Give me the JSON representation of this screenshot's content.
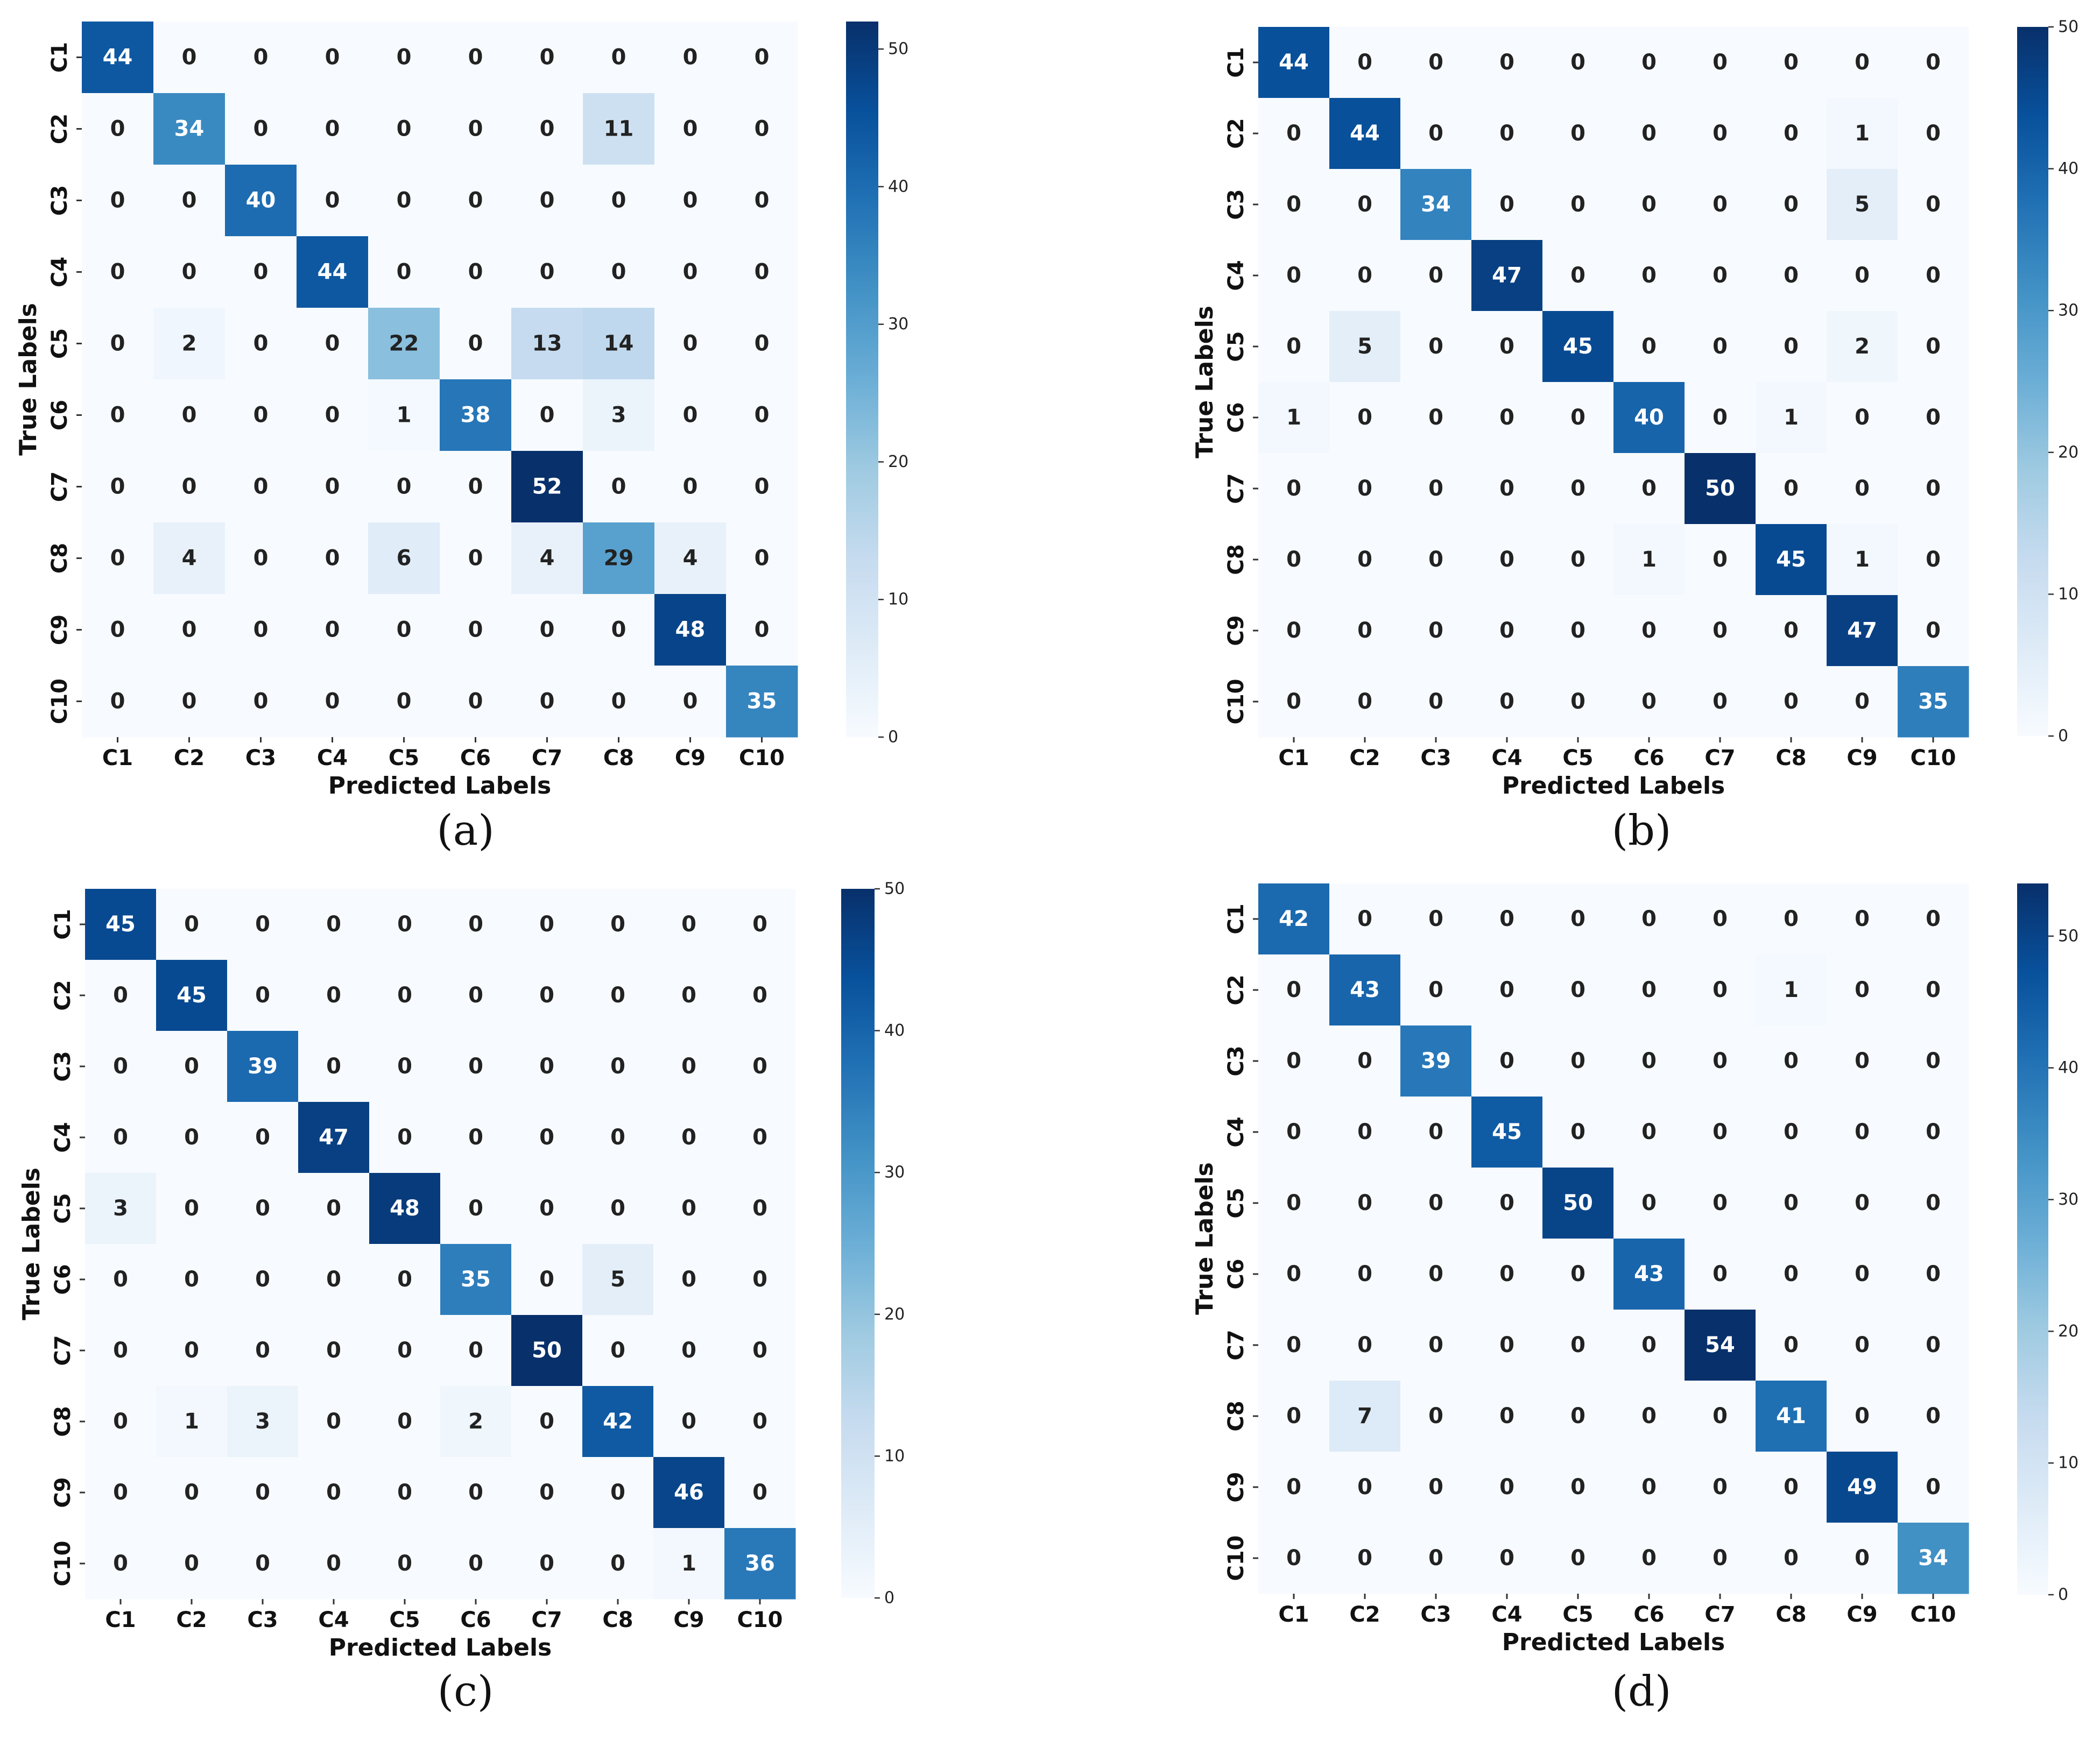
{
  "colorscale": [
    "#f7fbff",
    "#deebf7",
    "#c6dbef",
    "#9ecae1",
    "#6baed6",
    "#4292c6",
    "#2171b5",
    "#08519c",
    "#08306b"
  ],
  "chart_data": [
    {
      "type": "heatmap",
      "panel_label": "(a)",
      "xlabel": "Predicted Labels",
      "ylabel": "True Labels",
      "x_categories": [
        "C1",
        "C2",
        "C3",
        "C4",
        "C5",
        "C6",
        "C7",
        "C8",
        "C9",
        "C10"
      ],
      "y_categories": [
        "C1",
        "C2",
        "C3",
        "C4",
        "C5",
        "C6",
        "C7",
        "C8",
        "C9",
        "C10"
      ],
      "matrix": [
        [
          44,
          0,
          0,
          0,
          0,
          0,
          0,
          0,
          0,
          0
        ],
        [
          0,
          34,
          0,
          0,
          0,
          0,
          0,
          11,
          0,
          0
        ],
        [
          0,
          0,
          40,
          0,
          0,
          0,
          0,
          0,
          0,
          0
        ],
        [
          0,
          0,
          0,
          44,
          0,
          0,
          0,
          0,
          0,
          0
        ],
        [
          0,
          2,
          0,
          0,
          22,
          0,
          13,
          14,
          0,
          0
        ],
        [
          0,
          0,
          0,
          0,
          1,
          38,
          0,
          3,
          0,
          0
        ],
        [
          0,
          0,
          0,
          0,
          0,
          0,
          52,
          0,
          0,
          0
        ],
        [
          0,
          4,
          0,
          0,
          6,
          0,
          4,
          29,
          4,
          0
        ],
        [
          0,
          0,
          0,
          0,
          0,
          0,
          0,
          0,
          48,
          0
        ],
        [
          0,
          0,
          0,
          0,
          0,
          0,
          0,
          0,
          0,
          35
        ]
      ],
      "colorbar": {
        "min": 0,
        "max": 52,
        "ticks": [
          0,
          10,
          20,
          30,
          40,
          50
        ]
      }
    },
    {
      "type": "heatmap",
      "panel_label": "(b)",
      "xlabel": "Predicted Labels",
      "ylabel": "True Labels",
      "x_categories": [
        "C1",
        "C2",
        "C3",
        "C4",
        "C5",
        "C6",
        "C7",
        "C8",
        "C9",
        "C10"
      ],
      "y_categories": [
        "C1",
        "C2",
        "C3",
        "C4",
        "C5",
        "C6",
        "C7",
        "C8",
        "C9",
        "C10"
      ],
      "matrix": [
        [
          44,
          0,
          0,
          0,
          0,
          0,
          0,
          0,
          0,
          0
        ],
        [
          0,
          44,
          0,
          0,
          0,
          0,
          0,
          0,
          1,
          0
        ],
        [
          0,
          0,
          34,
          0,
          0,
          0,
          0,
          0,
          5,
          0
        ],
        [
          0,
          0,
          0,
          47,
          0,
          0,
          0,
          0,
          0,
          0
        ],
        [
          0,
          5,
          0,
          0,
          45,
          0,
          0,
          0,
          2,
          0
        ],
        [
          1,
          0,
          0,
          0,
          0,
          40,
          0,
          1,
          0,
          0
        ],
        [
          0,
          0,
          0,
          0,
          0,
          0,
          50,
          0,
          0,
          0
        ],
        [
          0,
          0,
          0,
          0,
          0,
          1,
          0,
          45,
          1,
          0
        ],
        [
          0,
          0,
          0,
          0,
          0,
          0,
          0,
          0,
          47,
          0
        ],
        [
          0,
          0,
          0,
          0,
          0,
          0,
          0,
          0,
          0,
          35
        ]
      ],
      "colorbar": {
        "min": 0,
        "max": 50,
        "ticks": [
          0,
          10,
          20,
          30,
          40,
          50
        ]
      }
    },
    {
      "type": "heatmap",
      "panel_label": "(c)",
      "xlabel": "Predicted Labels",
      "ylabel": "True Labels",
      "x_categories": [
        "C1",
        "C2",
        "C3",
        "C4",
        "C5",
        "C6",
        "C7",
        "C8",
        "C9",
        "C10"
      ],
      "y_categories": [
        "C1",
        "C2",
        "C3",
        "C4",
        "C5",
        "C6",
        "C7",
        "C8",
        "C9",
        "C10"
      ],
      "matrix": [
        [
          45,
          0,
          0,
          0,
          0,
          0,
          0,
          0,
          0,
          0
        ],
        [
          0,
          45,
          0,
          0,
          0,
          0,
          0,
          0,
          0,
          0
        ],
        [
          0,
          0,
          39,
          0,
          0,
          0,
          0,
          0,
          0,
          0
        ],
        [
          0,
          0,
          0,
          47,
          0,
          0,
          0,
          0,
          0,
          0
        ],
        [
          3,
          0,
          0,
          0,
          48,
          0,
          0,
          0,
          0,
          0
        ],
        [
          0,
          0,
          0,
          0,
          0,
          35,
          0,
          5,
          0,
          0
        ],
        [
          0,
          0,
          0,
          0,
          0,
          0,
          50,
          0,
          0,
          0
        ],
        [
          0,
          1,
          3,
          0,
          0,
          2,
          0,
          42,
          0,
          0
        ],
        [
          0,
          0,
          0,
          0,
          0,
          0,
          0,
          0,
          46,
          0
        ],
        [
          0,
          0,
          0,
          0,
          0,
          0,
          0,
          0,
          1,
          36
        ]
      ],
      "colorbar": {
        "min": 0,
        "max": 50,
        "ticks": [
          0,
          10,
          20,
          30,
          40,
          50
        ]
      }
    },
    {
      "type": "heatmap",
      "panel_label": "(d)",
      "xlabel": "Predicted Labels",
      "ylabel": "True Labels",
      "x_categories": [
        "C1",
        "C2",
        "C3",
        "C4",
        "C5",
        "C6",
        "C7",
        "C8",
        "C9",
        "C10"
      ],
      "y_categories": [
        "C1",
        "C2",
        "C3",
        "C4",
        "C5",
        "C6",
        "C7",
        "C8",
        "C9",
        "C10"
      ],
      "matrix": [
        [
          42,
          0,
          0,
          0,
          0,
          0,
          0,
          0,
          0,
          0
        ],
        [
          0,
          43,
          0,
          0,
          0,
          0,
          0,
          1,
          0,
          0
        ],
        [
          0,
          0,
          39,
          0,
          0,
          0,
          0,
          0,
          0,
          0
        ],
        [
          0,
          0,
          0,
          45,
          0,
          0,
          0,
          0,
          0,
          0
        ],
        [
          0,
          0,
          0,
          0,
          50,
          0,
          0,
          0,
          0,
          0
        ],
        [
          0,
          0,
          0,
          0,
          0,
          43,
          0,
          0,
          0,
          0
        ],
        [
          0,
          0,
          0,
          0,
          0,
          0,
          54,
          0,
          0,
          0
        ],
        [
          0,
          7,
          0,
          0,
          0,
          0,
          0,
          41,
          0,
          0
        ],
        [
          0,
          0,
          0,
          0,
          0,
          0,
          0,
          0,
          49,
          0
        ],
        [
          0,
          0,
          0,
          0,
          0,
          0,
          0,
          0,
          0,
          34
        ]
      ],
      "colorbar": {
        "min": 0,
        "max": 54,
        "ticks": [
          0,
          10,
          20,
          30,
          40,
          50
        ]
      }
    }
  ]
}
